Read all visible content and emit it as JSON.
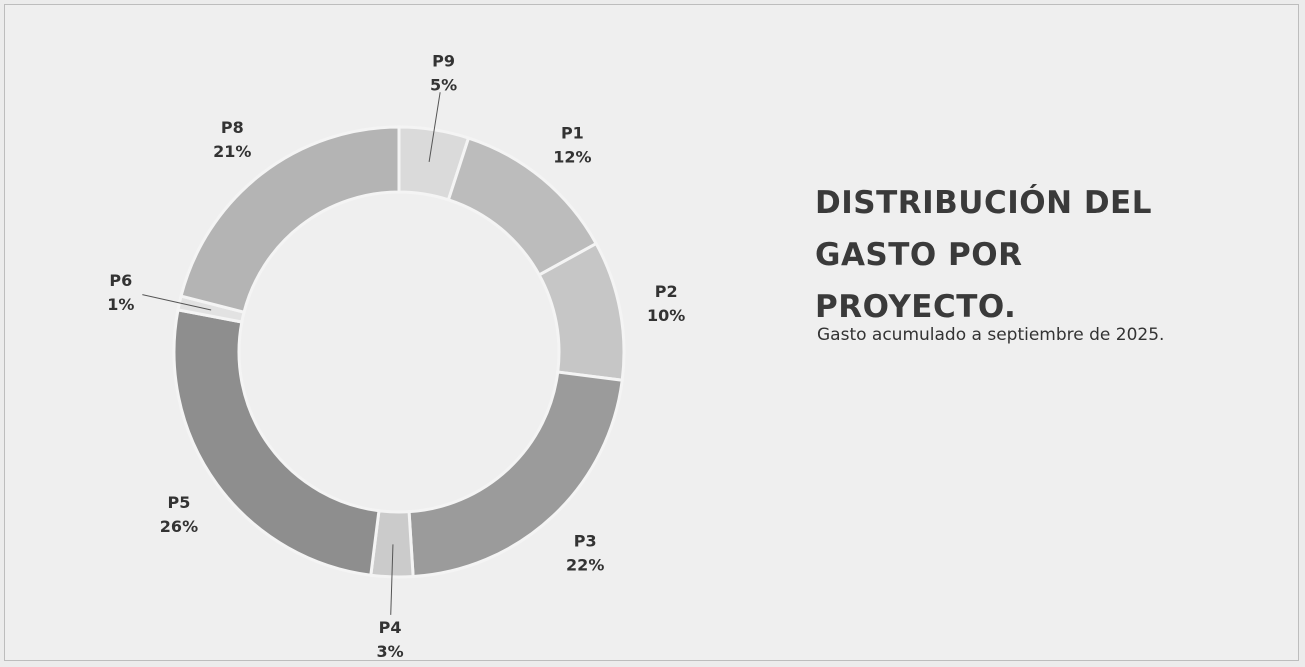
{
  "chart_data": {
    "type": "donut",
    "title": "DISTRIBUCIÓN DEL GASTO POR PROYECTO.",
    "subtitle": "Gasto acumulado a septiembre de 2025.",
    "categories": [
      "P9",
      "P1",
      "P2",
      "P3",
      "P4",
      "P5",
      "P6",
      "P8"
    ],
    "values": [
      5,
      12,
      10,
      22,
      3,
      26,
      1,
      21
    ],
    "value_labels": [
      "5%",
      "12%",
      "10%",
      "22%",
      "3%",
      "26%",
      "1%",
      "21%"
    ],
    "colors": [
      "#dadada",
      "#bcbcbc",
      "#c6c6c6",
      "#9b9b9b",
      "#cbcbcb",
      "#8e8e8e",
      "#e2e2e2",
      "#b4b4b4"
    ]
  }
}
